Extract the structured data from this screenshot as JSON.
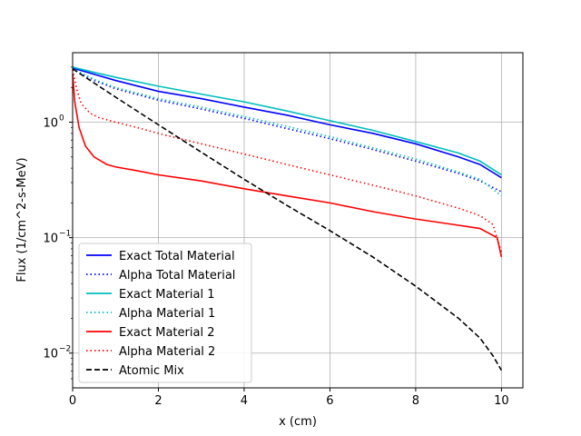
{
  "chart_data": {
    "type": "line",
    "xlabel": "x (cm)",
    "ylabel": "Flux (1/cm^2-s-MeV)",
    "xlim": [
      0,
      10.5
    ],
    "ylim": [
      0.005,
      4
    ],
    "yscale": "log",
    "grid": true,
    "legend_position": "lower-left",
    "xticks": [
      0,
      2,
      4,
      6,
      8,
      10
    ],
    "xtick_labels": [
      "0",
      "2",
      "4",
      "6",
      "8",
      "10"
    ],
    "yticks": [
      0.01,
      0.1,
      1
    ],
    "ytick_labels": [
      "10",
      "10",
      "10"
    ],
    "ytick_exponents": [
      "−2",
      "−1",
      "0"
    ],
    "series": [
      {
        "name": "Exact Total Material",
        "color": "#0000ff",
        "dash": "solid",
        "x": [
          0,
          0.5,
          1,
          2,
          3,
          4,
          5,
          6,
          7,
          8,
          9,
          9.5,
          10
        ],
        "y": [
          2.95,
          2.6,
          2.3,
          1.85,
          1.6,
          1.35,
          1.15,
          0.95,
          0.8,
          0.65,
          0.5,
          0.43,
          0.33
        ]
      },
      {
        "name": "Alpha Total Material",
        "color": "#0000ff",
        "dash": "dotted",
        "x": [
          0,
          0.5,
          1,
          2,
          3,
          4,
          5,
          6,
          7,
          8,
          9,
          9.5,
          10
        ],
        "y": [
          2.9,
          2.3,
          1.95,
          1.55,
          1.3,
          1.08,
          0.88,
          0.72,
          0.58,
          0.46,
          0.36,
          0.31,
          0.25
        ]
      },
      {
        "name": "Exact Material 1",
        "color": "#00bfbf",
        "dash": "solid",
        "x": [
          0,
          0.5,
          1,
          2,
          3,
          4,
          5,
          6,
          7,
          8,
          9,
          9.5,
          10
        ],
        "y": [
          3.0,
          2.7,
          2.45,
          2.05,
          1.75,
          1.5,
          1.25,
          1.03,
          0.85,
          0.68,
          0.54,
          0.46,
          0.35
        ]
      },
      {
        "name": "Alpha Material 1",
        "color": "#00bfbf",
        "dash": "dotted",
        "x": [
          0,
          0.5,
          1,
          2,
          3,
          4,
          5,
          6,
          7,
          8,
          9,
          9.5,
          10
        ],
        "y": [
          2.9,
          2.35,
          2.0,
          1.6,
          1.35,
          1.12,
          0.92,
          0.75,
          0.6,
          0.48,
          0.37,
          0.32,
          0.23
        ]
      },
      {
        "name": "Exact Material 2",
        "color": "#ff0000",
        "dash": "solid",
        "x": [
          0,
          0.05,
          0.15,
          0.3,
          0.5,
          0.8,
          1,
          1.5,
          2,
          3,
          4,
          5,
          6,
          7,
          8,
          9,
          9.5,
          9.9,
          10
        ],
        "y": [
          2.6,
          1.5,
          0.9,
          0.62,
          0.5,
          0.43,
          0.41,
          0.38,
          0.35,
          0.31,
          0.265,
          0.23,
          0.2,
          0.168,
          0.145,
          0.128,
          0.12,
          0.1,
          0.068
        ]
      },
      {
        "name": "Alpha Material 2",
        "color": "#ff0000",
        "dash": "dotted",
        "x": [
          0,
          0.1,
          0.2,
          0.4,
          0.6,
          1,
          1.5,
          2,
          3,
          4,
          5,
          6,
          7,
          8,
          9,
          9.5,
          9.8,
          10
        ],
        "y": [
          2.85,
          1.9,
          1.45,
          1.2,
          1.1,
          1.0,
          0.9,
          0.8,
          0.65,
          0.53,
          0.43,
          0.35,
          0.285,
          0.23,
          0.18,
          0.155,
          0.13,
          0.075
        ]
      },
      {
        "name": "Atomic Mix",
        "color": "#000000",
        "dash": "dashed",
        "x": [
          0,
          1,
          2,
          3,
          4,
          5,
          6,
          7,
          8,
          9,
          9.5,
          9.8,
          10
        ],
        "y": [
          2.9,
          1.65,
          0.95,
          0.55,
          0.32,
          0.19,
          0.115,
          0.068,
          0.038,
          0.02,
          0.0135,
          0.0095,
          0.0071
        ]
      }
    ]
  }
}
